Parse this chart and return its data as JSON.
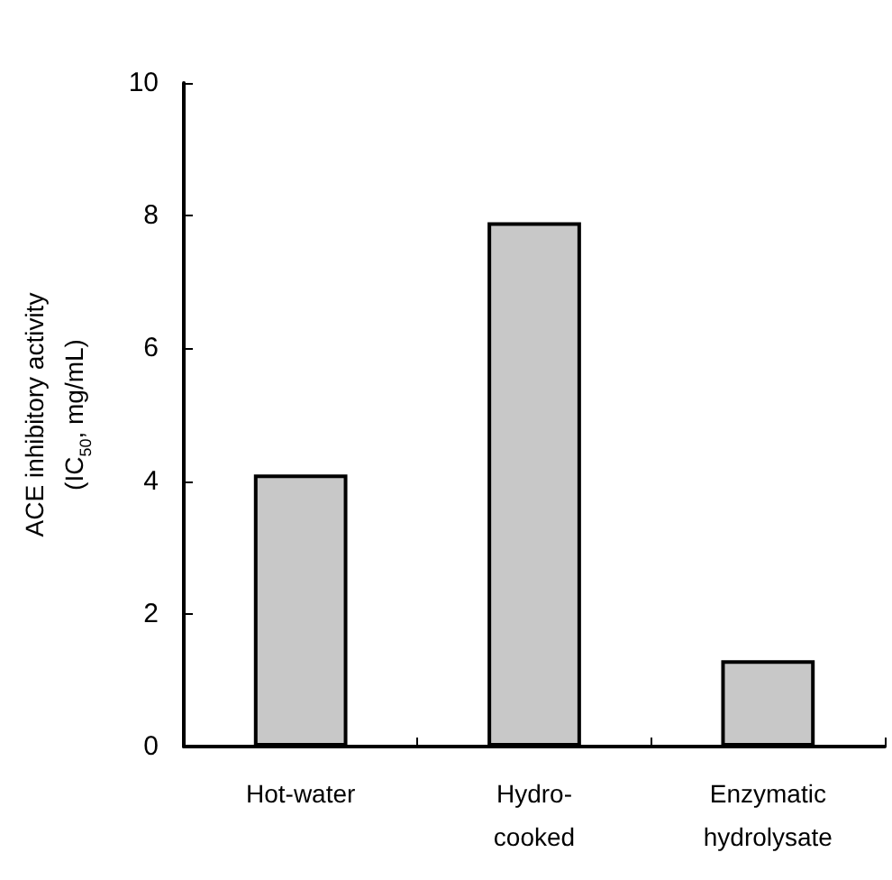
{
  "chart_data": {
    "type": "bar",
    "ylabel": "ACE inhibitory activity\n(IC$_{50}$, mg/mL)",
    "categories": [
      "Hot-water",
      "Hydro-\ncooked",
      "Enzymatic\nhydrolysate"
    ],
    "values": [
      4.1,
      7.9,
      1.3
    ],
    "color": "#c8c8c8",
    "ylim": [
      0,
      10
    ],
    "yticks": [
      0,
      2,
      4,
      6,
      8,
      10
    ],
    "grid": false
  }
}
